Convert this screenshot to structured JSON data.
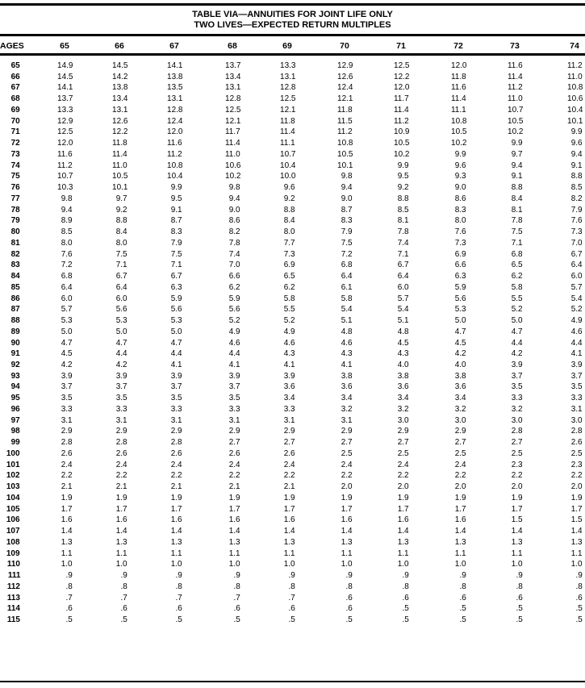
{
  "title": {
    "line1": "TABLE VIA—ANNUITIES FOR JOINT LIFE ONLY",
    "line2": "TWO LIVES—EXPECTED RETURN MULTIPLES"
  },
  "table": {
    "age_header": "AGES",
    "columns": [
      "65",
      "66",
      "67",
      "68",
      "69",
      "70",
      "71",
      "72",
      "73",
      "74"
    ],
    "rows": [
      {
        "age": "65",
        "values": [
          "14.9",
          "14.5",
          "14.1",
          "13.7",
          "13.3",
          "12.9",
          "12.5",
          "12.0",
          "11.6",
          "11.2"
        ]
      },
      {
        "age": "66",
        "values": [
          "14.5",
          "14.2",
          "13.8",
          "13.4",
          "13.1",
          "12.6",
          "12.2",
          "11.8",
          "11.4",
          "11.0"
        ]
      },
      {
        "age": "67",
        "values": [
          "14.1",
          "13.8",
          "13.5",
          "13.1",
          "12.8",
          "12.4",
          "12.0",
          "11.6",
          "11.2",
          "10.8"
        ]
      },
      {
        "age": "68",
        "values": [
          "13.7",
          "13.4",
          "13.1",
          "12.8",
          "12.5",
          "12.1",
          "11.7",
          "11.4",
          "11.0",
          "10.6"
        ]
      },
      {
        "age": "69",
        "values": [
          "13.3",
          "13.1",
          "12.8",
          "12.5",
          "12.1",
          "11.8",
          "11.4",
          "11.1",
          "10.7",
          "10.4"
        ]
      },
      {
        "age": "70",
        "values": [
          "12.9",
          "12.6",
          "12.4",
          "12.1",
          "11.8",
          "11.5",
          "11.2",
          "10.8",
          "10.5",
          "10.1"
        ]
      },
      {
        "age": "71",
        "values": [
          "12.5",
          "12.2",
          "12.0",
          "11.7",
          "11.4",
          "11.2",
          "10.9",
          "10.5",
          "10.2",
          "9.9"
        ]
      },
      {
        "age": "72",
        "values": [
          "12.0",
          "11.8",
          "11.6",
          "11.4",
          "11.1",
          "10.8",
          "10.5",
          "10.2",
          "9.9",
          "9.6"
        ]
      },
      {
        "age": "73",
        "values": [
          "11.6",
          "11.4",
          "11.2",
          "11.0",
          "10.7",
          "10.5",
          "10.2",
          "9.9",
          "9.7",
          "9.4"
        ]
      },
      {
        "age": "74",
        "values": [
          "11.2",
          "11.0",
          "10.8",
          "10.6",
          "10.4",
          "10.1",
          "9.9",
          "9.6",
          "9.4",
          "9.1"
        ]
      },
      {
        "age": "75",
        "values": [
          "10.7",
          "10.5",
          "10.4",
          "10.2",
          "10.0",
          "9.8",
          "9.5",
          "9.3",
          "9.1",
          "8.8"
        ]
      },
      {
        "age": "76",
        "values": [
          "10.3",
          "10.1",
          "9.9",
          "9.8",
          "9.6",
          "9.4",
          "9.2",
          "9.0",
          "8.8",
          "8.5"
        ]
      },
      {
        "age": "77",
        "values": [
          "9.8",
          "9.7",
          "9.5",
          "9.4",
          "9.2",
          "9.0",
          "8.8",
          "8.6",
          "8.4",
          "8.2"
        ]
      },
      {
        "age": "78",
        "values": [
          "9.4",
          "9.2",
          "9.1",
          "9.0",
          "8.8",
          "8.7",
          "8.5",
          "8.3",
          "8.1",
          "7.9"
        ]
      },
      {
        "age": "79",
        "values": [
          "8.9",
          "8.8",
          "8.7",
          "8.6",
          "8.4",
          "8.3",
          "8.1",
          "8.0",
          "7.8",
          "7.6"
        ]
      },
      {
        "age": "80",
        "values": [
          "8.5",
          "8.4",
          "8.3",
          "8.2",
          "8.0",
          "7.9",
          "7.8",
          "7.6",
          "7.5",
          "7.3"
        ]
      },
      {
        "age": "81",
        "values": [
          "8.0",
          "8.0",
          "7.9",
          "7.8",
          "7.7",
          "7.5",
          "7.4",
          "7.3",
          "7.1",
          "7.0"
        ]
      },
      {
        "age": "82",
        "values": [
          "7.6",
          "7.5",
          "7.5",
          "7.4",
          "7.3",
          "7.2",
          "7.1",
          "6.9",
          "6.8",
          "6.7"
        ]
      },
      {
        "age": "83",
        "values": [
          "7.2",
          "7.1",
          "7.1",
          "7.0",
          "6.9",
          "6.8",
          "6.7",
          "6.6",
          "6.5",
          "6.4"
        ]
      },
      {
        "age": "84",
        "values": [
          "6.8",
          "6.7",
          "6.7",
          "6.6",
          "6.5",
          "6.4",
          "6.4",
          "6.3",
          "6.2",
          "6.0"
        ]
      },
      {
        "age": "85",
        "values": [
          "6.4",
          "6.4",
          "6.3",
          "6.2",
          "6.2",
          "6.1",
          "6.0",
          "5.9",
          "5.8",
          "5.7"
        ]
      },
      {
        "age": "86",
        "values": [
          "6.0",
          "6.0",
          "5.9",
          "5.9",
          "5.8",
          "5.8",
          "5.7",
          "5.6",
          "5.5",
          "5.4"
        ]
      },
      {
        "age": "87",
        "values": [
          "5.7",
          "5.6",
          "5.6",
          "5.6",
          "5.5",
          "5.4",
          "5.4",
          "5.3",
          "5.2",
          "5.2"
        ]
      },
      {
        "age": "88",
        "values": [
          "5.3",
          "5.3",
          "5.3",
          "5.2",
          "5.2",
          "5.1",
          "5.1",
          "5.0",
          "5.0",
          "4.9"
        ]
      },
      {
        "age": "89",
        "values": [
          "5.0",
          "5.0",
          "5.0",
          "4.9",
          "4.9",
          "4.8",
          "4.8",
          "4.7",
          "4.7",
          "4.6"
        ]
      },
      {
        "age": "90",
        "values": [
          "4.7",
          "4.7",
          "4.7",
          "4.6",
          "4.6",
          "4.6",
          "4.5",
          "4.5",
          "4.4",
          "4.4"
        ]
      },
      {
        "age": "91",
        "values": [
          "4.5",
          "4.4",
          "4.4",
          "4.4",
          "4.3",
          "4.3",
          "4.3",
          "4.2",
          "4.2",
          "4.1"
        ]
      },
      {
        "age": "92",
        "values": [
          "4.2",
          "4.2",
          "4.1",
          "4.1",
          "4.1",
          "4.1",
          "4.0",
          "4.0",
          "3.9",
          "3.9"
        ]
      },
      {
        "age": "93",
        "values": [
          "3.9",
          "3.9",
          "3.9",
          "3.9",
          "3.9",
          "3.8",
          "3.8",
          "3.8",
          "3.7",
          "3.7"
        ]
      },
      {
        "age": "94",
        "values": [
          "3.7",
          "3.7",
          "3.7",
          "3.7",
          "3.6",
          "3.6",
          "3.6",
          "3.6",
          "3.5",
          "3.5"
        ]
      },
      {
        "age": "95",
        "values": [
          "3.5",
          "3.5",
          "3.5",
          "3.5",
          "3.4",
          "3.4",
          "3.4",
          "3.4",
          "3.3",
          "3.3"
        ]
      },
      {
        "age": "96",
        "values": [
          "3.3",
          "3.3",
          "3.3",
          "3.3",
          "3.3",
          "3.2",
          "3.2",
          "3.2",
          "3.2",
          "3.1"
        ]
      },
      {
        "age": "97",
        "values": [
          "3.1",
          "3.1",
          "3.1",
          "3.1",
          "3.1",
          "3.1",
          "3.0",
          "3.0",
          "3.0",
          "3.0"
        ]
      },
      {
        "age": "98",
        "values": [
          "2.9",
          "2.9",
          "2.9",
          "2.9",
          "2.9",
          "2.9",
          "2.9",
          "2.9",
          "2.8",
          "2.8"
        ]
      },
      {
        "age": "99",
        "values": [
          "2.8",
          "2.8",
          "2.8",
          "2.7",
          "2.7",
          "2.7",
          "2.7",
          "2.7",
          "2.7",
          "2.6"
        ]
      },
      {
        "age": "100",
        "values": [
          "2.6",
          "2.6",
          "2.6",
          "2.6",
          "2.6",
          "2.5",
          "2.5",
          "2.5",
          "2.5",
          "2.5"
        ]
      },
      {
        "age": "101",
        "values": [
          "2.4",
          "2.4",
          "2.4",
          "2.4",
          "2.4",
          "2.4",
          "2.4",
          "2.4",
          "2.3",
          "2.3"
        ]
      },
      {
        "age": "102",
        "values": [
          "2.2",
          "2.2",
          "2.2",
          "2.2",
          "2.2",
          "2.2",
          "2.2",
          "2.2",
          "2.2",
          "2.2"
        ]
      },
      {
        "age": "103",
        "values": [
          "2.1",
          "2.1",
          "2.1",
          "2.1",
          "2.1",
          "2.0",
          "2.0",
          "2.0",
          "2.0",
          "2.0"
        ]
      },
      {
        "age": "104",
        "values": [
          "1.9",
          "1.9",
          "1.9",
          "1.9",
          "1.9",
          "1.9",
          "1.9",
          "1.9",
          "1.9",
          "1.9"
        ]
      },
      {
        "age": "105",
        "values": [
          "1.7",
          "1.7",
          "1.7",
          "1.7",
          "1.7",
          "1.7",
          "1.7",
          "1.7",
          "1.7",
          "1.7"
        ]
      },
      {
        "age": "106",
        "values": [
          "1.6",
          "1.6",
          "1.6",
          "1.6",
          "1.6",
          "1.6",
          "1.6",
          "1.6",
          "1.5",
          "1.5"
        ]
      },
      {
        "age": "107",
        "values": [
          "1.4",
          "1.4",
          "1.4",
          "1.4",
          "1.4",
          "1.4",
          "1.4",
          "1.4",
          "1.4",
          "1.4"
        ]
      },
      {
        "age": "108",
        "values": [
          "1.3",
          "1.3",
          "1.3",
          "1.3",
          "1.3",
          "1.3",
          "1.3",
          "1.3",
          "1.3",
          "1.3"
        ]
      },
      {
        "age": "109",
        "values": [
          "1.1",
          "1.1",
          "1.1",
          "1.1",
          "1.1",
          "1.1",
          "1.1",
          "1.1",
          "1.1",
          "1.1"
        ]
      },
      {
        "age": "110",
        "values": [
          "1.0",
          "1.0",
          "1.0",
          "1.0",
          "1.0",
          "1.0",
          "1.0",
          "1.0",
          "1.0",
          "1.0"
        ]
      },
      {
        "age": "111",
        "values": [
          ".9",
          ".9",
          ".9",
          ".9",
          ".9",
          ".9",
          ".9",
          ".9",
          ".9",
          ".9"
        ]
      },
      {
        "age": "112",
        "values": [
          ".8",
          ".8",
          ".8",
          ".8",
          ".8",
          ".8",
          ".8",
          ".8",
          ".8",
          ".8"
        ]
      },
      {
        "age": "113",
        "values": [
          ".7",
          ".7",
          ".7",
          ".7",
          ".7",
          ".6",
          ".6",
          ".6",
          ".6",
          ".6"
        ]
      },
      {
        "age": "114",
        "values": [
          ".6",
          ".6",
          ".6",
          ".6",
          ".6",
          ".6",
          ".5",
          ".5",
          ".5",
          ".5"
        ]
      },
      {
        "age": "115",
        "values": [
          ".5",
          ".5",
          ".5",
          ".5",
          ".5",
          ".5",
          ".5",
          ".5",
          ".5",
          ".5"
        ]
      }
    ]
  }
}
